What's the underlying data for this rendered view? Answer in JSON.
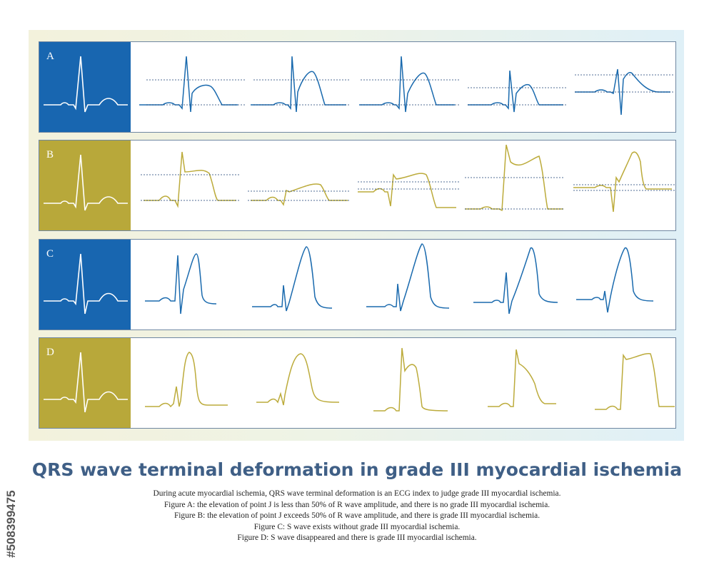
{
  "colors": {
    "blue": "#1a6aae",
    "olive": "#bcab3b",
    "reference_bg_blue": "#1866b0",
    "reference_bg_olive": "#b8a83a",
    "title": "#3f5f86",
    "panel_border": "#6f87a2"
  },
  "rows": [
    {
      "letter": "A",
      "theme": "blue"
    },
    {
      "letter": "B",
      "theme": "olive"
    },
    {
      "letter": "C",
      "theme": "blue"
    },
    {
      "letter": "D",
      "theme": "olive"
    }
  ],
  "title": "QRS wave terminal deformation in grade III myocardial ischemia",
  "caption": [
    "During acute myocardial ischemia, QRS wave terminal deformation is an ECG index to judge grade III myocardial ischemia.",
    "Figure A: the elevation of point J is less than 50% of R wave amplitude, and there is no grade III myocardial ischemia.",
    "Figure B: the elevation of point J exceeds 50% of R wave amplitude, and there is grade III myocardial ischemia.",
    "Figure C: S wave exists without grade III myocardial ischemia.",
    "Figure D: S wave disappeared and there is grade III myocardial ischemia."
  ],
  "stock_id": "#508399475"
}
